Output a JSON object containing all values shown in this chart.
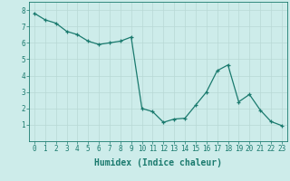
{
  "xlabel": "Humidex (Indice chaleur)",
  "ylabel": "",
  "x_values": [
    0,
    1,
    2,
    3,
    4,
    5,
    6,
    7,
    8,
    9,
    10,
    11,
    12,
    13,
    14,
    15,
    16,
    17,
    18,
    19,
    20,
    21,
    22,
    23
  ],
  "y_values": [
    7.8,
    7.4,
    7.2,
    6.7,
    6.5,
    6.1,
    5.9,
    6.0,
    6.1,
    6.35,
    2.0,
    1.8,
    1.15,
    1.35,
    1.4,
    2.2,
    3.0,
    4.3,
    4.65,
    2.4,
    2.85,
    1.9,
    1.2,
    0.95
  ],
  "line_color": "#1a7a6e",
  "marker_color": "#1a7a6e",
  "bg_color": "#cdecea",
  "grid_color": "#b8d8d5",
  "text_color": "#1a7a6e",
  "ylim": [
    0,
    8.5
  ],
  "yticks": [
    1,
    2,
    3,
    4,
    5,
    6,
    7,
    8
  ],
  "xticks": [
    0,
    1,
    2,
    3,
    4,
    5,
    6,
    7,
    8,
    9,
    10,
    11,
    12,
    13,
    14,
    15,
    16,
    17,
    18,
    19,
    20,
    21,
    22,
    23
  ],
  "tick_fontsize": 5.5,
  "xlabel_fontsize": 7.0
}
